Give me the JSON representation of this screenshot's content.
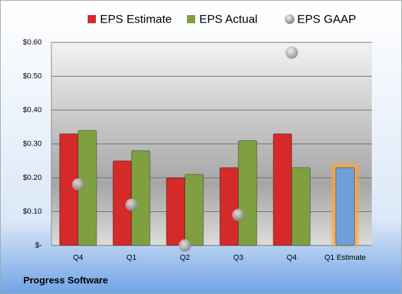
{
  "chart_data": {
    "type": "bar",
    "title": "Progress Software",
    "categories": [
      "Q4",
      "Q1",
      "Q2",
      "Q3",
      "Q4",
      "Q1 Estimate"
    ],
    "series": [
      {
        "name": "EPS Estimate",
        "color": "#d42a2a",
        "values": [
          0.33,
          0.25,
          0.2,
          0.23,
          0.33,
          0.23
        ],
        "highlight_color": "#6f9edb",
        "highlight_glow": "#f5a540"
      },
      {
        "name": "EPS Actual",
        "color": "#7fa040",
        "values": [
          0.34,
          0.28,
          0.21,
          0.31,
          0.23,
          null
        ]
      },
      {
        "name": "EPS GAAP",
        "color": "#a8a8a8",
        "values": [
          0.18,
          0.12,
          0.0,
          0.09,
          0.57,
          null
        ],
        "marker": "circle"
      }
    ],
    "ylim": [
      0,
      0.6
    ],
    "yticks": [
      {
        "value": 0,
        "label": "$-"
      },
      {
        "value": 0.1,
        "label": "$0.10"
      },
      {
        "value": 0.2,
        "label": "$0.20"
      },
      {
        "value": 0.3,
        "label": "$0.30"
      },
      {
        "value": 0.4,
        "label": "$0.40"
      },
      {
        "value": 0.5,
        "label": "$0.50"
      },
      {
        "value": 0.6,
        "label": "$0.60"
      }
    ],
    "grid": true
  }
}
